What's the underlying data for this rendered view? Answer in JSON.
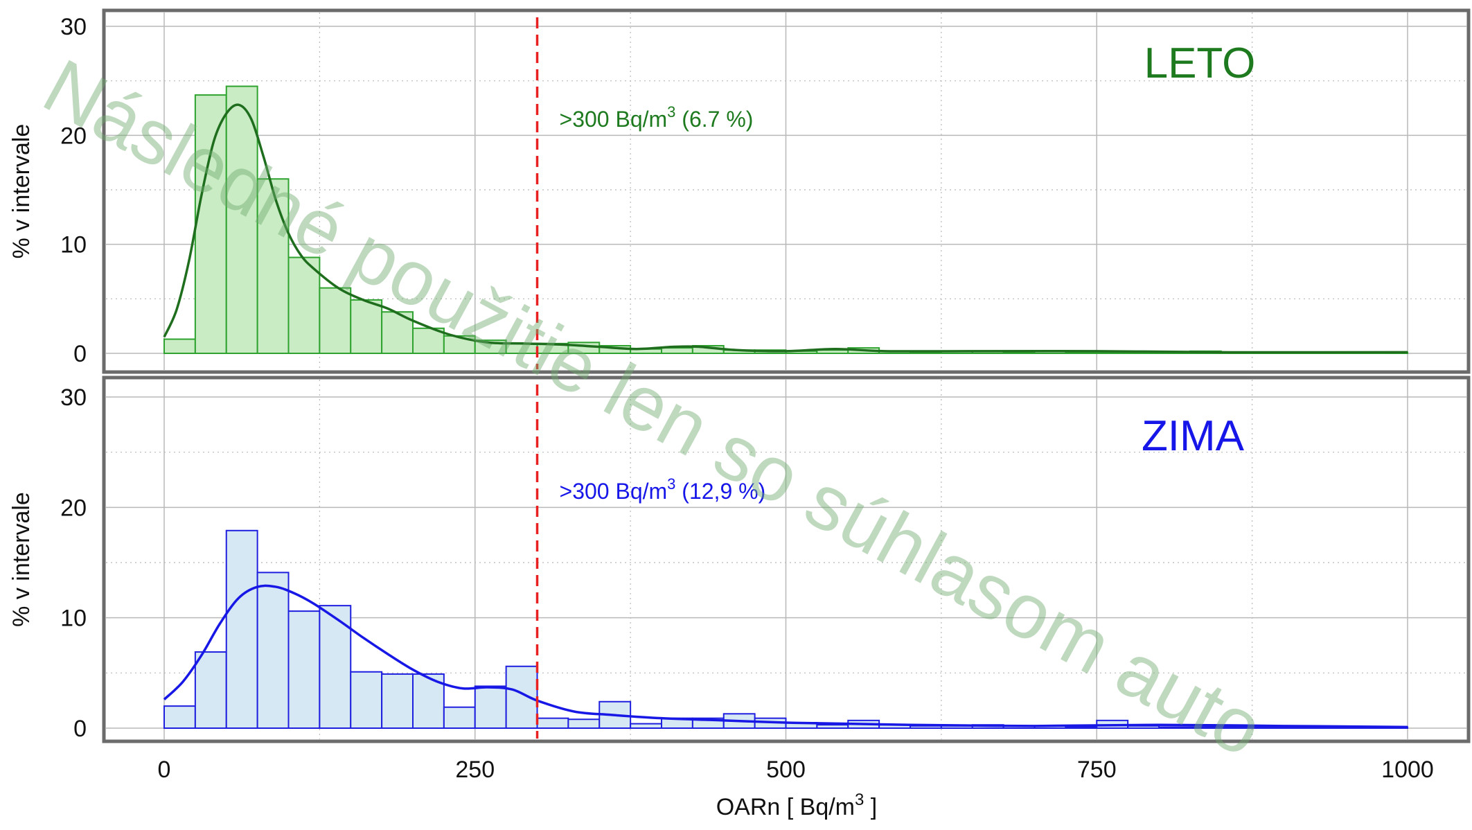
{
  "colors": {
    "summer_bar_fill": "#c9ecc4",
    "summer_bar_stroke": "#2fa32f",
    "summer_curve": "#1e6e1e",
    "summer_text": "#1e7a1e",
    "winter_bar_fill": "#d6e8f3",
    "winter_bar_stroke": "#1f1fe0",
    "winter_curve": "#1717e6",
    "winter_text": "#1616e8",
    "threshold_line": "#e82020",
    "frame": "#6b6b6b",
    "grid": "#b8b8b8"
  },
  "x_axis": {
    "label_main": "OARn  [ Bq/m",
    "label_sup": "3",
    "label_end": " ]"
  },
  "watermark": "Následné použitie len so súhlasom auto",
  "chart_data": [
    {
      "type": "bar",
      "panel": "top",
      "season_label": "LETO",
      "threshold": 300,
      "annotation": {
        "prefix": ">300 Bq/m",
        "sup": "3",
        "suffix": " (6.7 %)"
      },
      "ylabel": "% v intervale",
      "xlim": [
        0,
        1000
      ],
      "ylim": [
        0,
        30
      ],
      "xticks": [
        "0",
        "250",
        "500",
        "750",
        "1000"
      ],
      "yticks": [
        "0",
        "10",
        "20",
        "30"
      ],
      "bin_width": 25,
      "bin_start": 0,
      "values": [
        1.3,
        23.7,
        24.5,
        16.0,
        8.8,
        6.0,
        4.9,
        3.8,
        2.3,
        1.6,
        1.2,
        0.9,
        0.9,
        1.0,
        0.7,
        0.4,
        0.5,
        0.7,
        0.3,
        0.3,
        0.2,
        0.3,
        0.5,
        0.2,
        0.1,
        0.2,
        0.2,
        0.1,
        0.2,
        0.1,
        0.1,
        0.1,
        0.1,
        0.2,
        0.1,
        0.1,
        0.1,
        0.1,
        0.1,
        0.1
      ],
      "curve": {
        "x": [
          0,
          10,
          20,
          30,
          40,
          50,
          60,
          70,
          80,
          90,
          100,
          110,
          120,
          140,
          160,
          180,
          200,
          230,
          260,
          290,
          320,
          350,
          380,
          410,
          430,
          460,
          500,
          540,
          580,
          650,
          750,
          850,
          1000
        ],
        "y": [
          1.5,
          4.0,
          8.5,
          14.5,
          19.5,
          22.0,
          22.8,
          21.5,
          18.0,
          14.0,
          11.0,
          9.0,
          7.8,
          6.0,
          4.9,
          4.1,
          3.0,
          1.7,
          1.0,
          0.9,
          0.8,
          0.6,
          0.4,
          0.6,
          0.6,
          0.3,
          0.2,
          0.4,
          0.2,
          0.2,
          0.2,
          0.1,
          0.1
        ]
      }
    },
    {
      "type": "bar",
      "panel": "bottom",
      "season_label": "ZIMA",
      "threshold": 300,
      "annotation": {
        "prefix": ">300 Bq/m",
        "sup": "3",
        "suffix": " (12,9 %)"
      },
      "ylabel": "% v intervale",
      "xlabel": "OARn  [ Bq/m 3 ]",
      "xlim": [
        0,
        1000
      ],
      "ylim": [
        0,
        30
      ],
      "xticks": [
        "0",
        "250",
        "500",
        "750",
        "1000"
      ],
      "yticks": [
        "0",
        "10",
        "20",
        "30"
      ],
      "bin_width": 25,
      "bin_start": 0,
      "values": [
        2.0,
        6.9,
        17.9,
        14.1,
        10.6,
        11.1,
        5.1,
        4.9,
        4.9,
        1.9,
        3.8,
        5.6,
        0.9,
        0.8,
        2.4,
        0.4,
        0.9,
        0.9,
        1.3,
        0.9,
        0.5,
        0.3,
        0.7,
        0.3,
        0.2,
        0.2,
        0.3,
        0.2,
        0.2,
        0.1,
        0.7,
        0.2,
        0.1,
        0.1,
        0.1,
        0.1,
        0.1,
        0.1,
        0.1,
        0.1
      ],
      "curve": {
        "x": [
          0,
          15,
          30,
          45,
          60,
          75,
          90,
          105,
          120,
          140,
          160,
          180,
          200,
          220,
          240,
          260,
          280,
          300,
          330,
          360,
          400,
          450,
          500,
          550,
          600,
          700,
          800,
          900,
          1000
        ],
        "y": [
          2.6,
          4.2,
          6.6,
          9.5,
          11.8,
          12.8,
          12.8,
          12.2,
          11.3,
          9.8,
          8.2,
          6.7,
          5.3,
          4.2,
          3.6,
          3.7,
          3.5,
          2.5,
          1.5,
          1.2,
          0.9,
          0.7,
          0.5,
          0.4,
          0.3,
          0.2,
          0.3,
          0.2,
          0.1
        ]
      }
    }
  ]
}
